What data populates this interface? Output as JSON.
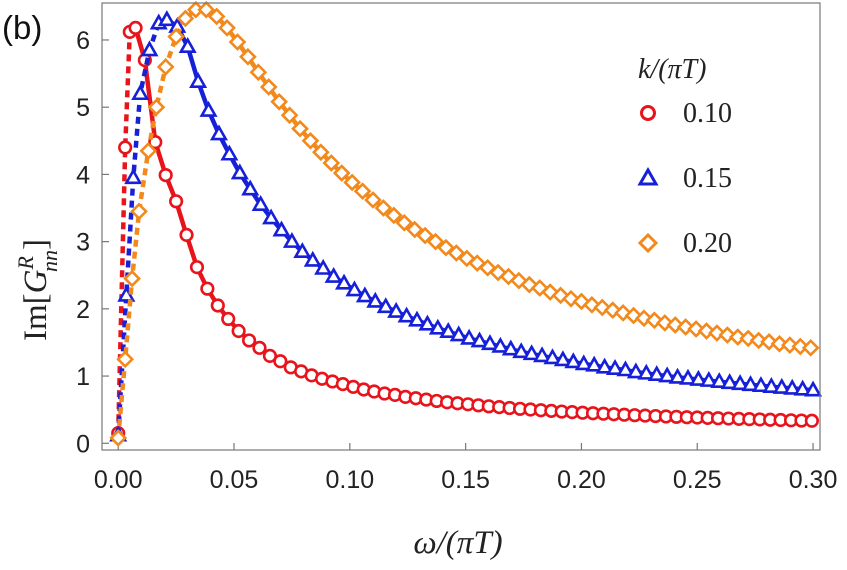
{
  "chart_data": {
    "type": "scatter",
    "panel_label": "(b)",
    "xlabel": "ω/(πT)",
    "ylabel_main": "Im",
    "ylabel_open": "[",
    "ylabel_G": "G",
    "ylabel_sup": "R",
    "ylabel_sub": "nn",
    "ylabel_close": "]",
    "xlim": [
      -0.007,
      0.303
    ],
    "ylim": [
      -0.1,
      6.55
    ],
    "xticks": [
      "0.00",
      "0.05",
      "0.10",
      "0.15",
      "0.20",
      "0.25",
      "0.30"
    ],
    "xtick_values": [
      0.0,
      0.05,
      0.1,
      0.15,
      0.2,
      0.25,
      0.3
    ],
    "yticks": [
      "0",
      "1",
      "2",
      "3",
      "4",
      "5",
      "6"
    ],
    "ytick_values": [
      0,
      1,
      2,
      3,
      4,
      5,
      6
    ],
    "legend_title": "k/(πT)",
    "legend_position": "right",
    "series": [
      {
        "name": "0.10",
        "color": "#e8141b",
        "marker": "circle",
        "style": "solid line beyond peak, dashed line near origin",
        "x": [
          0.0,
          0.003,
          0.005,
          0.0075,
          0.0115,
          0.016,
          0.0205,
          0.025,
          0.0295,
          0.034,
          0.0385,
          0.043,
          0.0475,
          0.052,
          0.0565,
          0.061,
          0.0655,
          0.07,
          0.0745,
          0.079,
          0.0835,
          0.088,
          0.0925,
          0.097,
          0.1015,
          0.106,
          0.1105,
          0.115,
          0.1195,
          0.124,
          0.1285,
          0.133,
          0.1375,
          0.142,
          0.1465,
          0.151,
          0.1555,
          0.16,
          0.1645,
          0.169,
          0.1735,
          0.178,
          0.1825,
          0.187,
          0.1915,
          0.196,
          0.2005,
          0.205,
          0.2095,
          0.214,
          0.2185,
          0.223,
          0.2275,
          0.232,
          0.2365,
          0.241,
          0.2455,
          0.25,
          0.2545,
          0.259,
          0.2635,
          0.268,
          0.2725,
          0.277,
          0.2815,
          0.286,
          0.2905,
          0.295,
          0.2995
        ],
        "y": [
          0.15,
          4.4,
          6.12,
          6.18,
          5.7,
          4.48,
          3.99,
          3.6,
          3.1,
          2.62,
          2.3,
          2.05,
          1.85,
          1.67,
          1.53,
          1.42,
          1.3,
          1.22,
          1.13,
          1.07,
          1.01,
          0.96,
          0.92,
          0.88,
          0.84,
          0.8,
          0.77,
          0.74,
          0.72,
          0.69,
          0.67,
          0.65,
          0.63,
          0.61,
          0.595,
          0.58,
          0.565,
          0.55,
          0.538,
          0.525,
          0.513,
          0.502,
          0.492,
          0.482,
          0.472,
          0.463,
          0.455,
          0.447,
          0.44,
          0.432,
          0.425,
          0.418,
          0.412,
          0.405,
          0.399,
          0.394,
          0.388,
          0.383,
          0.378,
          0.373,
          0.368,
          0.363,
          0.359,
          0.355,
          0.35,
          0.346,
          0.342,
          0.338,
          0.335
        ]
      },
      {
        "name": "0.15",
        "color": "#1620d8",
        "marker": "triangle",
        "style": "solid line beyond peak, dashed line near origin",
        "x": [
          0.0,
          0.0035,
          0.0065,
          0.0095,
          0.0135,
          0.0175,
          0.021,
          0.0255,
          0.03,
          0.0345,
          0.039,
          0.0435,
          0.048,
          0.0525,
          0.057,
          0.0615,
          0.066,
          0.0705,
          0.075,
          0.0795,
          0.084,
          0.0885,
          0.093,
          0.0975,
          0.102,
          0.1065,
          0.111,
          0.1155,
          0.12,
          0.1245,
          0.129,
          0.1335,
          0.138,
          0.1425,
          0.147,
          0.1515,
          0.156,
          0.1605,
          0.165,
          0.1695,
          0.174,
          0.1785,
          0.183,
          0.1875,
          0.192,
          0.1965,
          0.201,
          0.2055,
          0.21,
          0.2145,
          0.219,
          0.2235,
          0.228,
          0.2325,
          0.237,
          0.2415,
          0.246,
          0.2505,
          0.255,
          0.2595,
          0.264,
          0.2685,
          0.273,
          0.2775,
          0.282,
          0.2865,
          0.291,
          0.2955,
          0.3
        ],
        "y": [
          0.12,
          2.2,
          3.95,
          5.2,
          5.85,
          6.25,
          6.3,
          6.2,
          5.9,
          5.38,
          4.95,
          4.6,
          4.3,
          4.02,
          3.78,
          3.55,
          3.35,
          3.17,
          3.0,
          2.85,
          2.72,
          2.6,
          2.48,
          2.38,
          2.28,
          2.19,
          2.11,
          2.03,
          1.96,
          1.89,
          1.83,
          1.77,
          1.71,
          1.66,
          1.61,
          1.56,
          1.52,
          1.48,
          1.44,
          1.4,
          1.36,
          1.33,
          1.3,
          1.27,
          1.24,
          1.21,
          1.18,
          1.16,
          1.13,
          1.11,
          1.09,
          1.06,
          1.04,
          1.02,
          1.0,
          0.98,
          0.965,
          0.948,
          0.932,
          0.916,
          0.9,
          0.885,
          0.87,
          0.856,
          0.842,
          0.829,
          0.816,
          0.803,
          0.79
        ]
      },
      {
        "name": "0.20",
        "color": "#f2891d",
        "marker": "diamond",
        "style": "solid line beyond peak, dashed line near origin",
        "x": [
          0.0,
          0.003,
          0.006,
          0.009,
          0.013,
          0.0165,
          0.0205,
          0.025,
          0.029,
          0.0335,
          0.038,
          0.0425,
          0.047,
          0.0515,
          0.056,
          0.0605,
          0.065,
          0.0695,
          0.074,
          0.0785,
          0.083,
          0.0875,
          0.092,
          0.0965,
          0.101,
          0.1055,
          0.11,
          0.1145,
          0.119,
          0.1235,
          0.128,
          0.1325,
          0.137,
          0.1415,
          0.146,
          0.1505,
          0.155,
          0.1595,
          0.164,
          0.1685,
          0.173,
          0.1775,
          0.182,
          0.1865,
          0.191,
          0.1955,
          0.2,
          0.2045,
          0.209,
          0.2135,
          0.218,
          0.2225,
          0.227,
          0.2315,
          0.236,
          0.2405,
          0.245,
          0.2495,
          0.254,
          0.2585,
          0.263,
          0.2675,
          0.272,
          0.2765,
          0.281,
          0.2855,
          0.29,
          0.2945,
          0.299
        ],
        "y": [
          0.08,
          1.25,
          2.45,
          3.45,
          4.35,
          5.0,
          5.6,
          6.05,
          6.32,
          6.45,
          6.45,
          6.35,
          6.18,
          5.97,
          5.75,
          5.52,
          5.3,
          5.08,
          4.88,
          4.68,
          4.5,
          4.33,
          4.17,
          4.02,
          3.88,
          3.75,
          3.62,
          3.5,
          3.39,
          3.28,
          3.18,
          3.09,
          3.0,
          2.91,
          2.83,
          2.75,
          2.68,
          2.61,
          2.54,
          2.48,
          2.42,
          2.36,
          2.31,
          2.25,
          2.2,
          2.15,
          2.11,
          2.06,
          2.02,
          1.98,
          1.94,
          1.9,
          1.86,
          1.83,
          1.79,
          1.76,
          1.73,
          1.7,
          1.67,
          1.64,
          1.61,
          1.58,
          1.56,
          1.53,
          1.51,
          1.48,
          1.46,
          1.44,
          1.42
        ]
      }
    ]
  },
  "colors": {
    "axis": "#555555"
  }
}
